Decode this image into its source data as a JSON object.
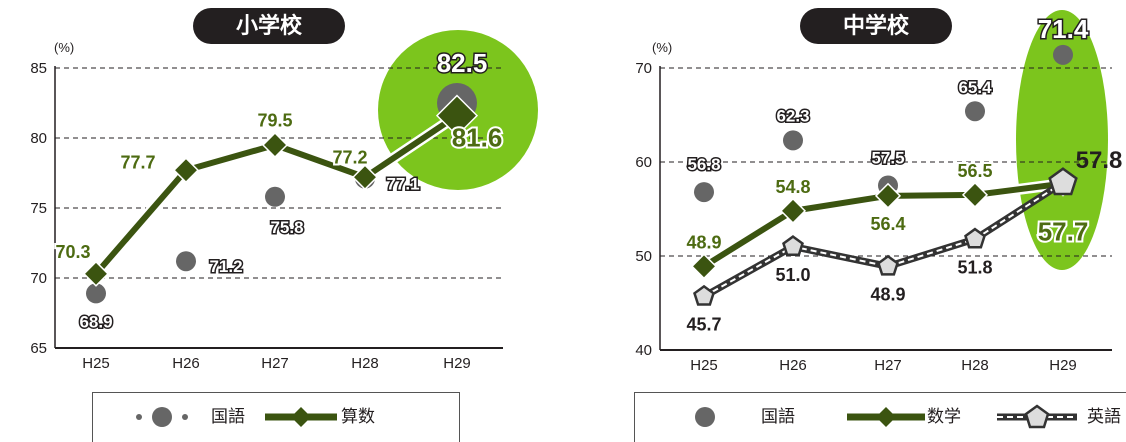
{
  "colors": {
    "japanese": "#666666",
    "math": "#3b5410",
    "english": "#444444",
    "label_green": "#4d6b12",
    "highlight": "#7cc51d",
    "grid": "#231f20"
  },
  "chart_data": [
    {
      "type": "line",
      "title": "小学校",
      "unit": "(%)",
      "categories": [
        "H25",
        "H26",
        "H27",
        "H28",
        "H29"
      ],
      "yticks": [
        65,
        70,
        75,
        80,
        85
      ],
      "ylim": [
        65,
        85
      ],
      "grid": true,
      "series": [
        {
          "name": "国語",
          "key": "japanese",
          "values": [
            68.9,
            71.2,
            75.8,
            77.1,
            82.5
          ],
          "labels": [
            "68.9",
            "71.2",
            "75.8",
            "77.1",
            "82.5"
          ],
          "marker": "circle"
        },
        {
          "name": "算数",
          "key": "math",
          "values": [
            70.3,
            77.7,
            79.5,
            77.2,
            81.6
          ],
          "labels": [
            "70.3",
            "77.7",
            "79.5",
            "77.2",
            "81.6"
          ],
          "marker": "diamond"
        }
      ],
      "highlight_category": "H29",
      "legend": {
        "japanese": "国語",
        "math": "算数"
      }
    },
    {
      "type": "line",
      "title": "中学校",
      "unit": "(%)",
      "categories": [
        "H25",
        "H26",
        "H27",
        "H28",
        "H29"
      ],
      "yticks": [
        40,
        50,
        60,
        70
      ],
      "ylim": [
        40,
        70
      ],
      "grid": true,
      "series": [
        {
          "name": "国語",
          "key": "japanese",
          "values": [
            56.8,
            62.3,
            57.5,
            65.4,
            71.4
          ],
          "labels": [
            "56.8",
            "62.3",
            "57.5",
            "65.4",
            "71.4"
          ],
          "marker": "circle"
        },
        {
          "name": "数学",
          "key": "math",
          "values": [
            48.9,
            54.8,
            56.4,
            56.5,
            57.7
          ],
          "labels": [
            "48.9",
            "54.8",
            "56.4",
            "56.5",
            "57.7"
          ],
          "marker": "diamond"
        },
        {
          "name": "英語",
          "key": "english",
          "values": [
            45.7,
            51.0,
            48.9,
            51.8,
            57.8
          ],
          "labels": [
            "45.7",
            "51.0",
            "48.9",
            "51.8",
            "57.8"
          ],
          "marker": "pentagon"
        }
      ],
      "highlight_category": "H29",
      "legend": {
        "japanese": "国語",
        "math": "数学",
        "english": "英語"
      }
    }
  ]
}
